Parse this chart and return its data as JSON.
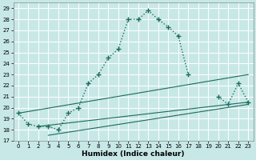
{
  "xlabel": "Humidex (Indice chaleur)",
  "background_color": "#c8e8e8",
  "grid_color": "#ffffff",
  "line_color": "#1a6b5a",
  "xlim": [
    -0.5,
    23.5
  ],
  "ylim": [
    17.0,
    29.5
  ],
  "yticks": [
    17,
    18,
    19,
    20,
    21,
    22,
    23,
    24,
    25,
    26,
    27,
    28,
    29
  ],
  "xticks": [
    0,
    1,
    2,
    3,
    4,
    5,
    6,
    7,
    8,
    9,
    10,
    11,
    12,
    13,
    14,
    15,
    16,
    17,
    18,
    19,
    20,
    21,
    22,
    23
  ],
  "series_main": {
    "x": [
      0,
      1,
      2,
      3,
      4,
      5,
      6,
      7,
      8,
      9,
      10,
      11,
      12,
      13,
      14,
      15,
      16,
      17
    ],
    "y": [
      19.5,
      18.5,
      18.3,
      18.3,
      18.0,
      19.5,
      20.0,
      22.2,
      23.0,
      24.5,
      25.3,
      28.0,
      28.0,
      28.8,
      28.0,
      27.3,
      26.5,
      23.0
    ]
  },
  "series_right": {
    "x": [
      20,
      21,
      22,
      23
    ],
    "y": [
      21.0,
      20.3,
      22.2,
      20.5
    ]
  },
  "straight_lines": [
    {
      "x0": 0,
      "y0": 19.5,
      "x1": 23,
      "y1": 23.0
    },
    {
      "x0": 2,
      "y0": 18.3,
      "x1": 23,
      "y1": 20.5
    },
    {
      "x0": 3,
      "y0": 17.5,
      "x1": 23,
      "y1": 20.3
    }
  ]
}
